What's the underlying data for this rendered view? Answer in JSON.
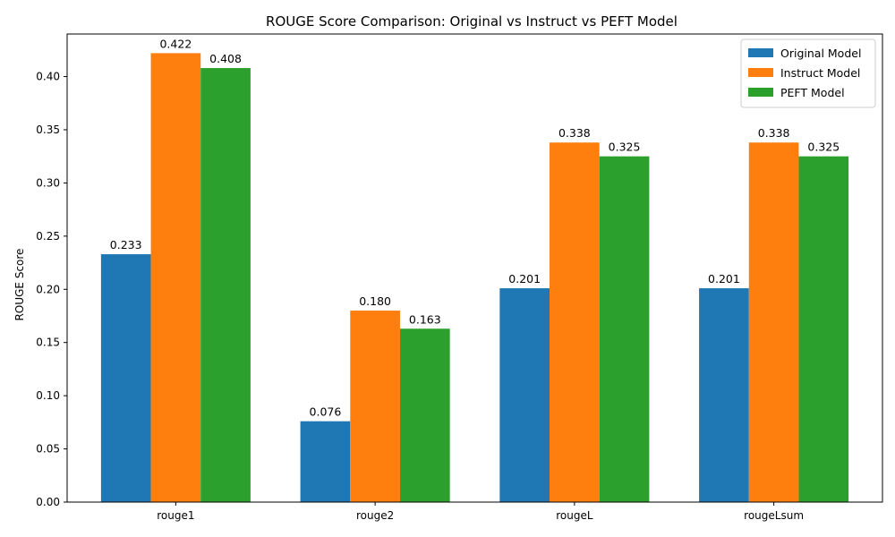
{
  "chart_data": {
    "type": "bar",
    "title": "ROUGE Score Comparison: Original vs Instruct vs PEFT Model",
    "xlabel": "",
    "ylabel": "ROUGE Score",
    "categories": [
      "rouge1",
      "rouge2",
      "rougeL",
      "rougeLsum"
    ],
    "series": [
      {
        "name": "Original Model",
        "color": "#1f77b4",
        "values": [
          0.233,
          0.076,
          0.201,
          0.201
        ],
        "labels": [
          "0.233",
          "0.076",
          "0.201",
          "0.201"
        ]
      },
      {
        "name": "Instruct Model",
        "color": "#ff7f0e",
        "values": [
          0.422,
          0.18,
          0.338,
          0.338
        ],
        "labels": [
          "0.422",
          "0.180",
          "0.338",
          "0.338"
        ]
      },
      {
        "name": "PEFT Model",
        "color": "#2ca02c",
        "values": [
          0.408,
          0.163,
          0.325,
          0.325
        ],
        "labels": [
          "0.408",
          "0.163",
          "0.325",
          "0.325"
        ]
      }
    ],
    "ylim": [
      0,
      0.44
    ],
    "yticks": [
      0.0,
      0.05,
      0.1,
      0.15,
      0.2,
      0.25,
      0.3,
      0.35,
      0.4
    ],
    "ytick_labels": [
      "0.00",
      "0.05",
      "0.10",
      "0.15",
      "0.20",
      "0.25",
      "0.30",
      "0.35",
      "0.40"
    ],
    "grid": false,
    "legend_position": "top-right"
  }
}
